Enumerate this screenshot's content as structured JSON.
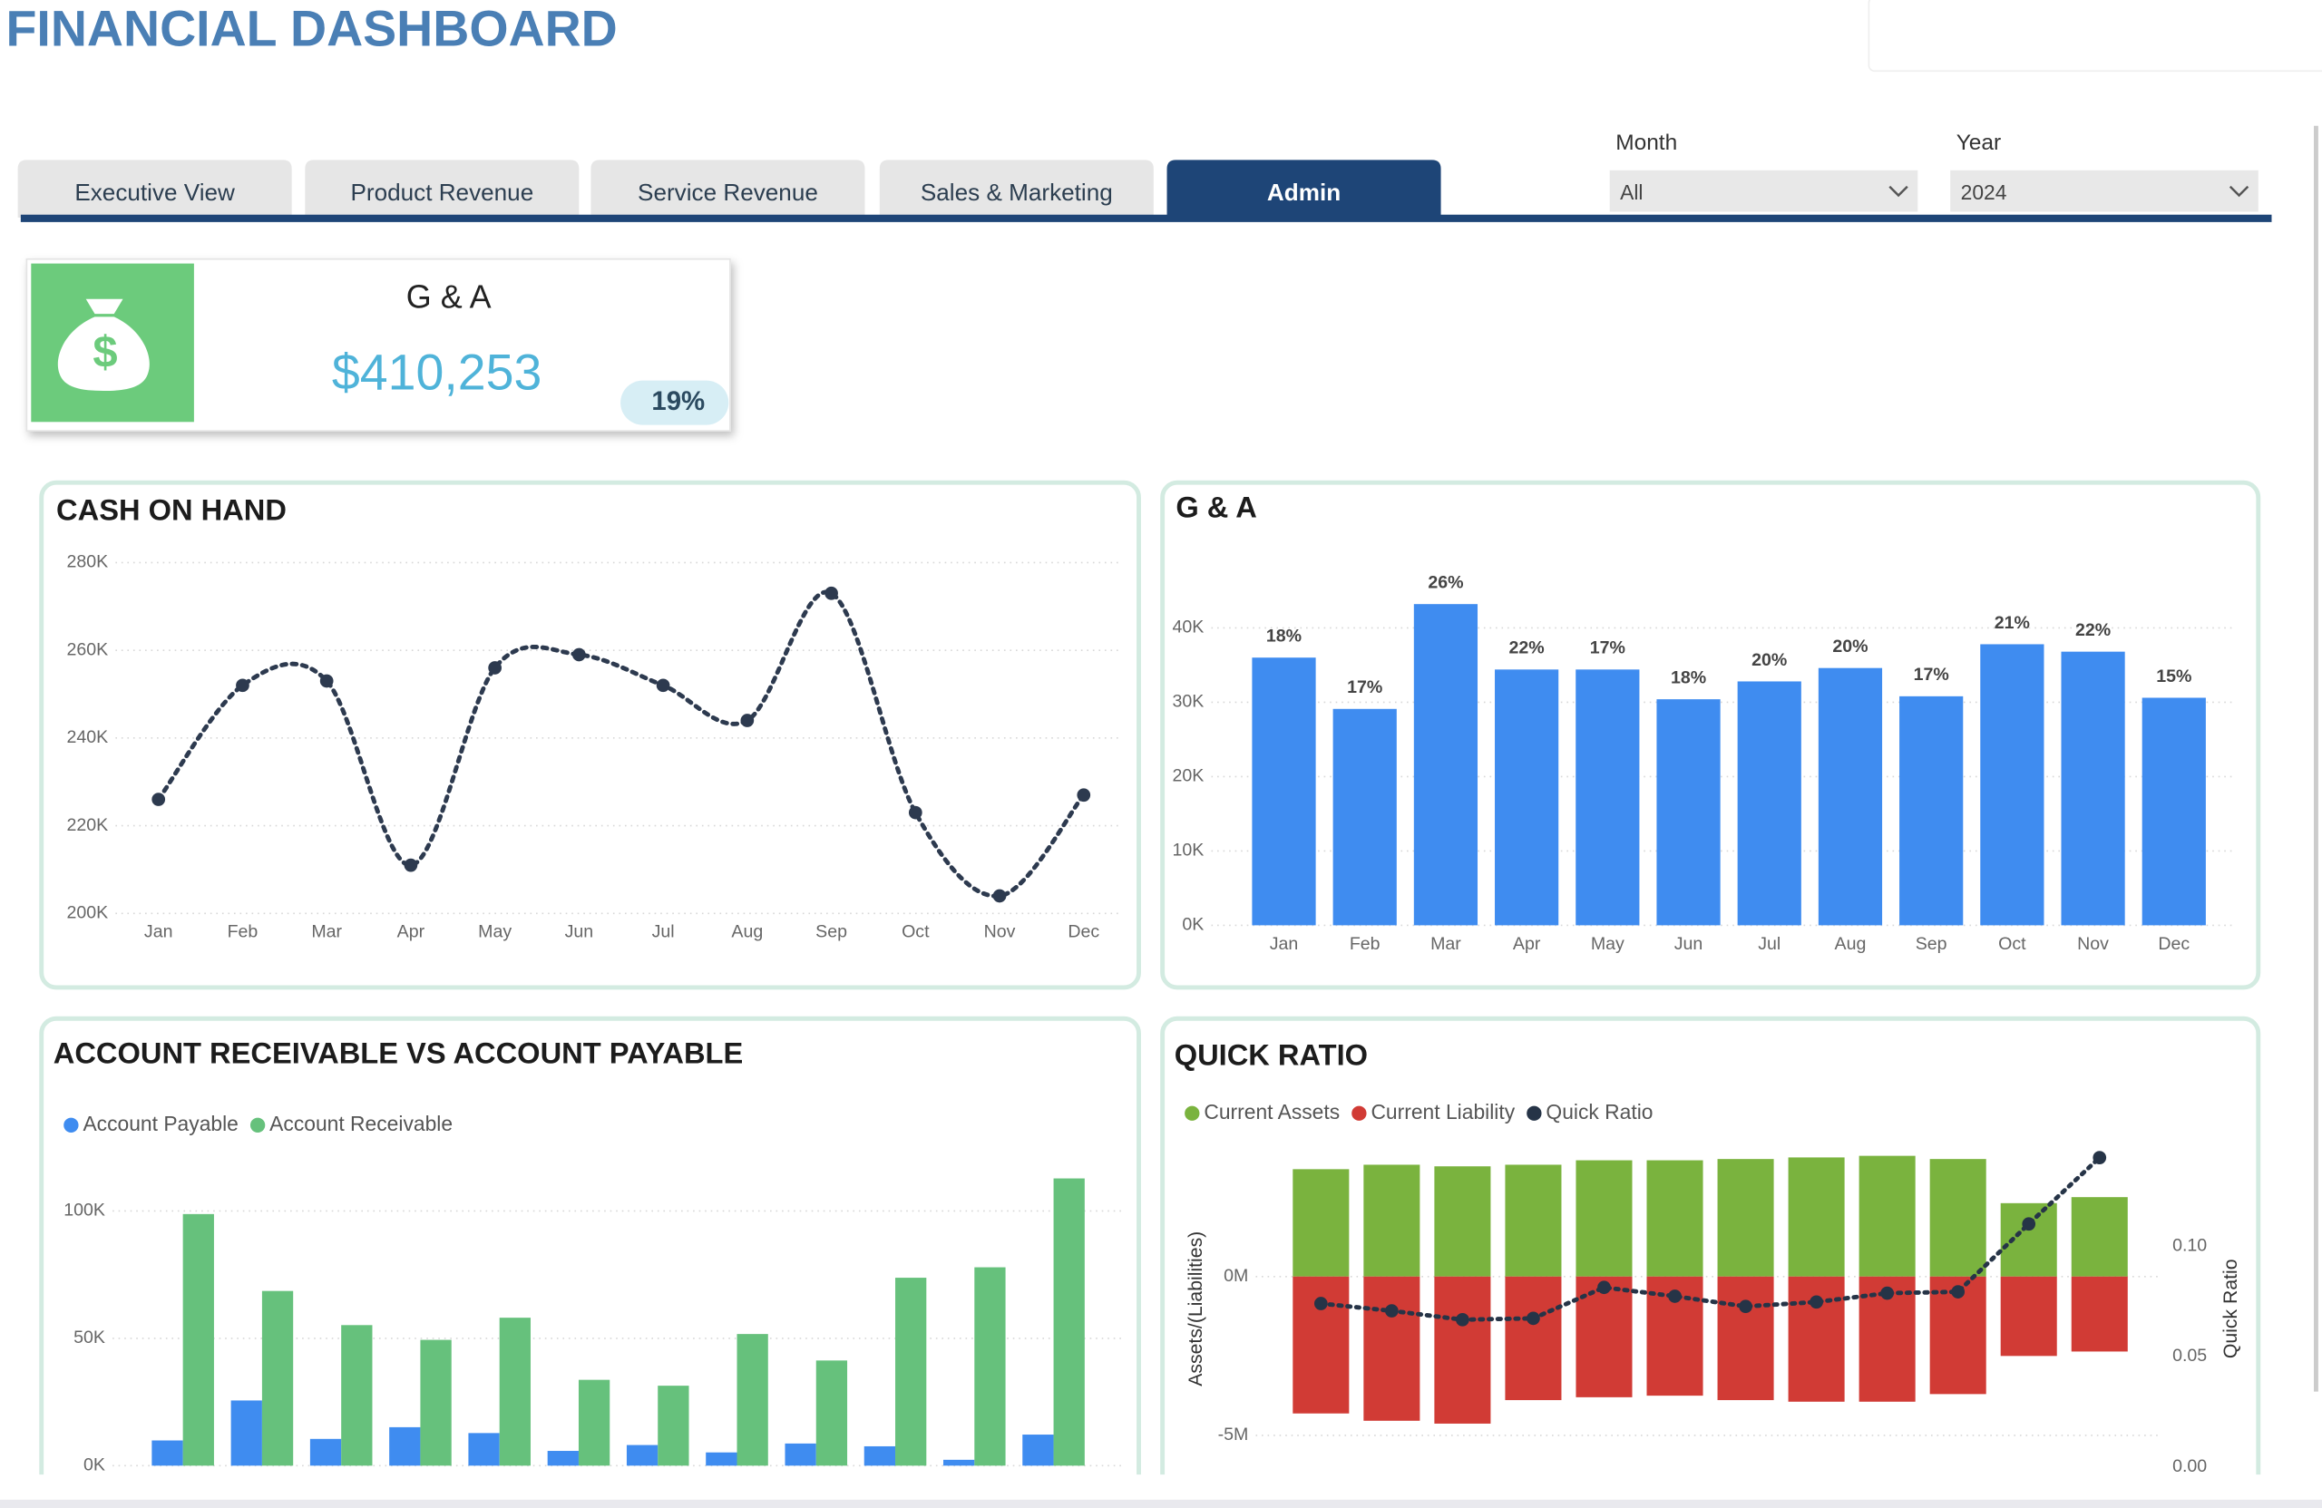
{
  "header": {
    "title": "FINANCIAL DASHBOARD"
  },
  "tabs": [
    "Executive View",
    "Product Revenue",
    "Service Revenue",
    "Sales & Marketing",
    "Admin"
  ],
  "active_tab": 4,
  "filters": [
    {
      "label": "Month",
      "value": "All"
    },
    {
      "label": "Year",
      "value": "2024"
    }
  ],
  "kpi": {
    "title": "G & A",
    "value": "$410,253",
    "badge": "19%"
  },
  "chart_data": [
    {
      "type": "line",
      "title": "CASH ON HAND",
      "categories": [
        "Jan",
        "Feb",
        "Mar",
        "Apr",
        "May",
        "Jun",
        "Jul",
        "Aug",
        "Sep",
        "Oct",
        "Nov",
        "Dec"
      ],
      "values": [
        226,
        252,
        253,
        211,
        256,
        259,
        252,
        244,
        273,
        223,
        204,
        227
      ],
      "color": "#2d3a4f",
      "dashed": true,
      "smooth": true,
      "ylim": [
        200,
        280
      ],
      "yticks": [
        {
          "value": 200,
          "label": "200K"
        },
        {
          "value": 220,
          "label": "220K"
        },
        {
          "value": 240,
          "label": "240K"
        },
        {
          "value": 260,
          "label": "260K"
        },
        {
          "value": 280,
          "label": "280K"
        }
      ],
      "grid": true
    },
    {
      "type": "bar",
      "title": "G & A",
      "categories": [
        "Jan",
        "Feb",
        "Mar",
        "Apr",
        "May",
        "Jun",
        "Jul",
        "Aug",
        "Sep",
        "Oct",
        "Nov",
        "Dec"
      ],
      "values": [
        36.0,
        29.1,
        43.2,
        34.4,
        34.4,
        30.4,
        32.8,
        34.6,
        30.8,
        37.8,
        36.8,
        30.6
      ],
      "data_labels": [
        "18%",
        "17%",
        "26%",
        "22%",
        "17%",
        "18%",
        "20%",
        "20%",
        "17%",
        "21%",
        "22%",
        "15%"
      ],
      "color": "#3f8cf0",
      "ylim": [
        0,
        45
      ],
      "yticks": [
        {
          "value": 0,
          "label": "0K"
        },
        {
          "value": 10,
          "label": "10K"
        },
        {
          "value": 20,
          "label": "20K"
        },
        {
          "value": 30,
          "label": "30K"
        },
        {
          "value": 40,
          "label": "40K"
        }
      ],
      "grid": true
    },
    {
      "type": "bar",
      "title": "ACCOUNT RECEIVABLE VS ACCOUNT PAYABLE",
      "categories": [
        null,
        null,
        null,
        null,
        null,
        null,
        null,
        null,
        null,
        null,
        null,
        null
      ],
      "series": [
        {
          "name": "Account Payable",
          "color": "#3f8cf0",
          "values": [
            9.9,
            25.6,
            10.5,
            15.1,
            12.8,
            5.8,
            8.1,
            5.2,
            8.7,
            7.6,
            2.3,
            12.2
          ]
        },
        {
          "name": "Account Receivable",
          "color": "#66c17c",
          "values": [
            98.8,
            68.6,
            55.2,
            49.4,
            58.1,
            33.7,
            31.4,
            51.7,
            41.3,
            73.8,
            77.9,
            112.8
          ]
        }
      ],
      "ylim": [
        0,
        115
      ],
      "yticks": [
        {
          "value": 0,
          "label": "0K"
        },
        {
          "value": 50,
          "label": "50K"
        },
        {
          "value": 100,
          "label": "100K"
        }
      ],
      "grid": true,
      "legend": "top-left"
    },
    {
      "type": "combo",
      "title": "QUICK RATIO",
      "categories": [
        null,
        null,
        null,
        null,
        null,
        null,
        null,
        null,
        null,
        null,
        null,
        null
      ],
      "ylabel": "Assets/(Liabilities)",
      "y2label": "Quick Ratio",
      "series": [
        {
          "name": "Current Assets",
          "color": "#7ab33e",
          "kind": "bar",
          "values": [
            3.38,
            3.52,
            3.47,
            3.52,
            3.66,
            3.66,
            3.7,
            3.75,
            3.8,
            3.7,
            2.31,
            2.5
          ]
        },
        {
          "name": "Current Liability",
          "color": "#d13b35",
          "kind": "bar",
          "values": [
            -4.31,
            -4.54,
            -4.63,
            -3.89,
            -3.8,
            -3.75,
            -3.89,
            -3.94,
            -3.94,
            -3.7,
            -2.5,
            -2.36
          ]
        },
        {
          "name": "Quick Ratio",
          "color": "#263447",
          "kind": "line",
          "axis": "y2",
          "values": [
            0.074,
            0.0707,
            0.0667,
            0.0673,
            0.0813,
            0.0773,
            0.0727,
            0.0747,
            0.0787,
            0.0793,
            0.11,
            0.14
          ]
        }
      ],
      "ylim": [
        -6,
        4.3
      ],
      "yticks": [
        {
          "value": -5,
          "label": "-5M"
        },
        {
          "value": 0,
          "label": "0M"
        }
      ],
      "y2lim": [
        0,
        0.148
      ],
      "y2ticks": [
        {
          "value": 0,
          "label": "0.00"
        },
        0.05,
        {
          "value": 0.1,
          "label": "0.10"
        }
      ],
      "grid": true,
      "legend": "top-left"
    }
  ]
}
